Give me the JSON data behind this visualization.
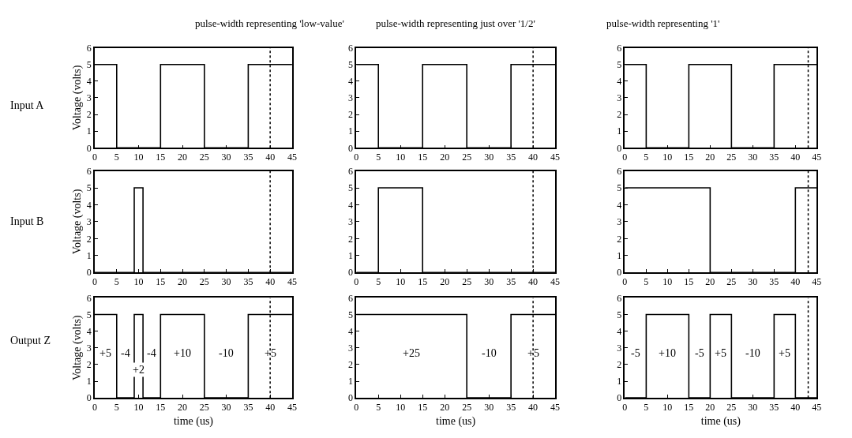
{
  "chart_data": [
    {
      "type": "step",
      "title": "pulse-width representing 'low-value'",
      "ylabel": "Voltage (volts)",
      "annotations": [
        "Input A"
      ],
      "x": [
        0,
        5,
        15,
        25,
        35,
        45
      ],
      "values": [
        5,
        0,
        5,
        0,
        5,
        5
      ],
      "color": "#000000",
      "xlim": [
        0,
        45
      ],
      "ylim": [
        0,
        6
      ],
      "xticks": [
        0,
        5,
        10,
        15,
        20,
        25,
        30,
        35,
        40,
        45
      ],
      "yticks": [
        0,
        1,
        2,
        3,
        4,
        5,
        6
      ],
      "ref_lines": [
        {
          "axis": "x",
          "value": 40,
          "line_style": "dotted"
        }
      ]
    },
    {
      "type": "step",
      "title": "pulse-width representing just over '1/2'",
      "x": [
        0,
        5,
        15,
        25,
        35,
        45
      ],
      "values": [
        5,
        0,
        5,
        0,
        5,
        5
      ],
      "color": "#000000",
      "xlim": [
        0,
        45
      ],
      "ylim": [
        0,
        6
      ],
      "xticks": [
        0,
        5,
        10,
        15,
        20,
        25,
        30,
        35,
        40,
        45
      ],
      "yticks": [
        0,
        1,
        2,
        3,
        4,
        5,
        6
      ],
      "ref_lines": [
        {
          "axis": "x",
          "value": 40,
          "line_style": "dotted"
        }
      ]
    },
    {
      "type": "step",
      "title": "pulse-width representing '1'",
      "x": [
        0,
        5,
        15,
        25,
        35,
        45
      ],
      "values": [
        5,
        0,
        5,
        0,
        5,
        5
      ],
      "color": "#000000",
      "xlim": [
        0,
        45
      ],
      "ylim": [
        0,
        6
      ],
      "xticks": [
        0,
        5,
        10,
        15,
        20,
        25,
        30,
        35,
        40,
        45
      ],
      "yticks": [
        0,
        1,
        2,
        3,
        4,
        5,
        6
      ],
      "ref_lines": [
        {
          "axis": "x",
          "value": 43,
          "line_style": "dotted"
        }
      ]
    },
    {
      "type": "step",
      "ylabel": "Voltage (volts)",
      "annotations": [
        "Input B"
      ],
      "x": [
        0,
        9,
        11,
        45
      ],
      "values": [
        0,
        5,
        0,
        0
      ],
      "color": "#000000",
      "xlim": [
        0,
        45
      ],
      "ylim": [
        0,
        6
      ],
      "xticks": [
        0,
        5,
        10,
        15,
        20,
        25,
        30,
        35,
        40,
        45
      ],
      "yticks": [
        0,
        1,
        2,
        3,
        4,
        5,
        6
      ],
      "ref_lines": [
        {
          "axis": "x",
          "value": 40,
          "line_style": "dotted"
        }
      ]
    },
    {
      "type": "step",
      "x": [
        0,
        5,
        15,
        45
      ],
      "values": [
        0,
        5,
        0,
        0
      ],
      "color": "#000000",
      "xlim": [
        0,
        45
      ],
      "ylim": [
        0,
        6
      ],
      "xticks": [
        0,
        5,
        10,
        15,
        20,
        25,
        30,
        35,
        40,
        45
      ],
      "yticks": [
        0,
        1,
        2,
        3,
        4,
        5,
        6
      ],
      "ref_lines": [
        {
          "axis": "x",
          "value": 40,
          "line_style": "dotted"
        }
      ]
    },
    {
      "type": "step",
      "x": [
        0,
        20,
        40,
        45
      ],
      "values": [
        5,
        0,
        5,
        5
      ],
      "color": "#000000",
      "xlim": [
        0,
        45
      ],
      "ylim": [
        0,
        6
      ],
      "xticks": [
        0,
        5,
        10,
        15,
        20,
        25,
        30,
        35,
        40,
        45
      ],
      "yticks": [
        0,
        1,
        2,
        3,
        4,
        5,
        6
      ],
      "ref_lines": [
        {
          "axis": "x",
          "value": 43,
          "line_style": "dotted"
        }
      ]
    },
    {
      "type": "step",
      "xlabel": "time (us)",
      "ylabel": "Voltage (volts)",
      "annotations": [
        "Output Z",
        "+5",
        "-4",
        "+2",
        "-4",
        "+10",
        "-10",
        "+5"
      ],
      "x": [
        0,
        5,
        9,
        11,
        15,
        25,
        35,
        45
      ],
      "values": [
        5,
        0,
        5,
        0,
        5,
        0,
        5,
        5
      ],
      "color": "#000000",
      "xlim": [
        0,
        45
      ],
      "ylim": [
        0,
        6
      ],
      "xticks": [
        0,
        5,
        10,
        15,
        20,
        25,
        30,
        35,
        40,
        45
      ],
      "yticks": [
        0,
        1,
        2,
        3,
        4,
        5,
        6
      ],
      "ref_lines": [
        {
          "axis": "x",
          "value": 40,
          "line_style": "dotted"
        }
      ]
    },
    {
      "type": "step",
      "xlabel": "time (us)",
      "annotations": [
        "+25",
        "-10",
        "+5"
      ],
      "x": [
        0,
        25,
        35,
        45
      ],
      "values": [
        5,
        0,
        5,
        5
      ],
      "color": "#000000",
      "xlim": [
        0,
        45
      ],
      "ylim": [
        0,
        6
      ],
      "xticks": [
        0,
        5,
        10,
        15,
        20,
        25,
        30,
        35,
        40,
        45
      ],
      "yticks": [
        0,
        1,
        2,
        3,
        4,
        5,
        6
      ],
      "ref_lines": [
        {
          "axis": "x",
          "value": 40,
          "line_style": "dotted"
        }
      ]
    },
    {
      "type": "step",
      "xlabel": "time (us)",
      "annotations": [
        "-5",
        "+10",
        "-5",
        "+5",
        "-10",
        "+5"
      ],
      "x": [
        0,
        5,
        15,
        20,
        25,
        35,
        40,
        45
      ],
      "values": [
        0,
        5,
        0,
        5,
        0,
        5,
        0,
        0
      ],
      "color": "#000000",
      "xlim": [
        0,
        45
      ],
      "ylim": [
        0,
        6
      ],
      "xticks": [
        0,
        5,
        10,
        15,
        20,
        25,
        30,
        35,
        40,
        45
      ],
      "yticks": [
        0,
        1,
        2,
        3,
        4,
        5,
        6
      ],
      "ref_lines": [
        {
          "axis": "x",
          "value": 43,
          "line_style": "dotted"
        }
      ]
    }
  ]
}
